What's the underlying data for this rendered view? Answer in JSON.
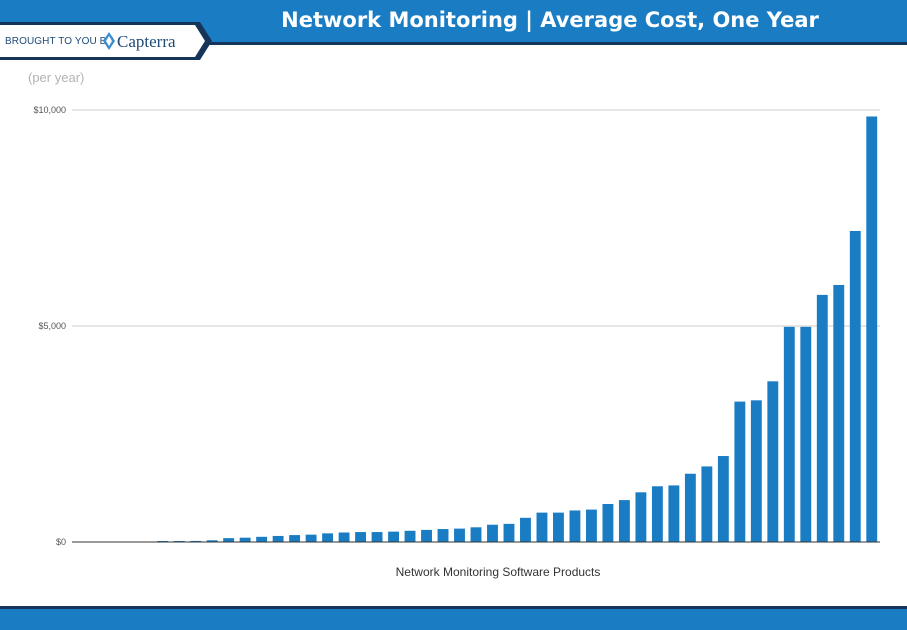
{
  "header": {
    "title": "Network Monitoring | Average Cost, One Year",
    "sponsor_prefix": "BROUGHT TO YOU BY",
    "sponsor_name": "Capterra"
  },
  "colors": {
    "accent": "#1a7dc4",
    "dark": "#16355a",
    "bar": "#1a7dc4",
    "grid": "#cccccc"
  },
  "chart_data": {
    "type": "bar",
    "subtitle": "(per year)",
    "xlabel": "Network Monitoring Software Products",
    "ylabel": "",
    "ylim": [
      0,
      10000
    ],
    "yticks": [
      {
        "value": 0,
        "label": "$0"
      },
      {
        "value": 5000,
        "label": "$5,000"
      },
      {
        "value": 10000,
        "label": "$10,000"
      }
    ],
    "grid": true,
    "legend": "none",
    "values": [
      0,
      0,
      0,
      0,
      0,
      20,
      20,
      25,
      40,
      90,
      100,
      120,
      140,
      160,
      170,
      200,
      220,
      230,
      230,
      240,
      260,
      280,
      300,
      310,
      340,
      400,
      420,
      560,
      680,
      680,
      730,
      750,
      880,
      970,
      1150,
      1290,
      1310,
      1580,
      1750,
      1990,
      3250,
      3280,
      3720,
      4980,
      4980,
      5720,
      5950,
      7200,
      9850
    ]
  }
}
